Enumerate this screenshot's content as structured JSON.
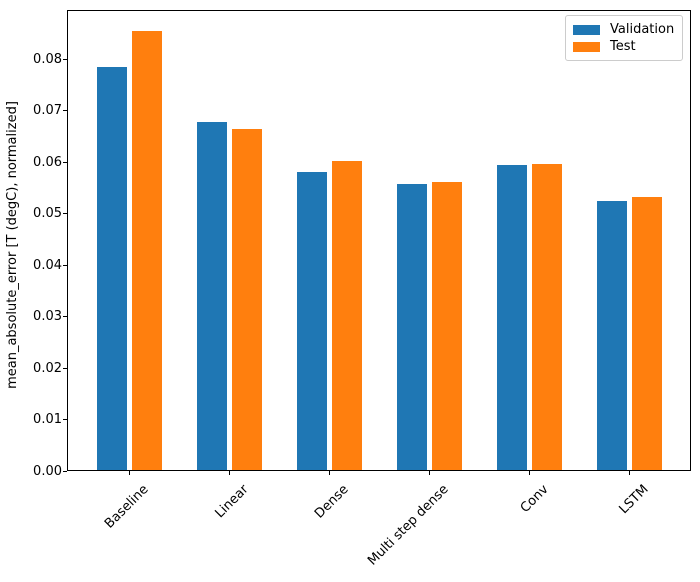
{
  "chart_data": {
    "type": "bar",
    "title": "",
    "xlabel": "",
    "ylabel": "mean_absolute_error [T (degC), normalized]",
    "categories": [
      "Baseline",
      "Linear",
      "Dense",
      "Multi step dense",
      "Conv",
      "LSTM"
    ],
    "series": [
      {
        "name": "Validation",
        "color": "#1f77b4",
        "values": [
          0.0785,
          0.0679,
          0.0581,
          0.0557,
          0.0594,
          0.0524
        ]
      },
      {
        "name": "Test",
        "color": "#ff7f0e",
        "values": [
          0.0855,
          0.0664,
          0.0603,
          0.0562,
          0.0596,
          0.0532
        ]
      }
    ],
    "ylim": [
      0,
      0.0896
    ],
    "y_ticks": [
      "0.00",
      "0.01",
      "0.02",
      "0.03",
      "0.04",
      "0.05",
      "0.06",
      "0.07",
      "0.08"
    ],
    "grid": false,
    "legend_position": "upper right",
    "background_color": "#ffffff",
    "spine_color": "#000000"
  }
}
